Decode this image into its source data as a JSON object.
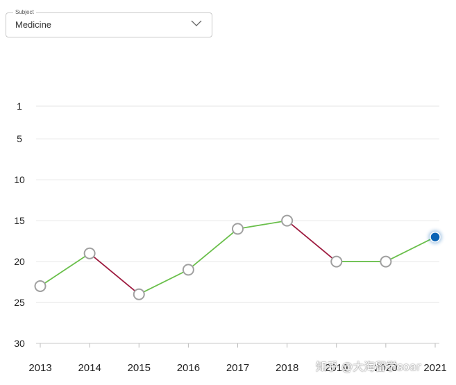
{
  "subject": {
    "legend": "Subject",
    "value": "Medicine",
    "icon": "chevron-down-icon"
  },
  "colors": {
    "improve": "#6abf4b",
    "decline": "#9e1b3f",
    "point_stroke": "#a0a0a0",
    "current_point": "#0a63b5",
    "grid": "#e6e6e6"
  },
  "chart_data": {
    "type": "line",
    "x": [
      "2013",
      "2014",
      "2015",
      "2016",
      "2017",
      "2018",
      "2019",
      "2020",
      "2021"
    ],
    "values": [
      23,
      19,
      24,
      21,
      16,
      15,
      20,
      20,
      17
    ],
    "y_ticks": [
      "1",
      "5",
      "10",
      "15",
      "20",
      "25",
      "30"
    ],
    "ylim": [
      1,
      30
    ],
    "y_inverted": true,
    "grid": true,
    "title": "",
    "xlabel": "",
    "ylabel": ""
  },
  "watermark": "知乎 @大海留学soar"
}
